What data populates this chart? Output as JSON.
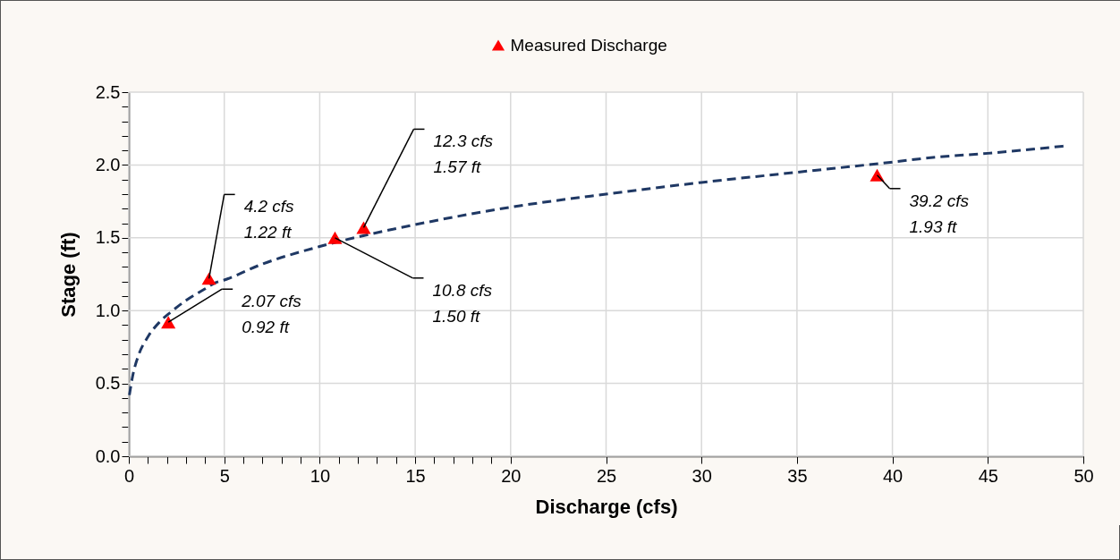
{
  "chart_data": {
    "type": "scatter",
    "xlabel": "Discharge (cfs)",
    "ylabel": "Stage (ft)",
    "xlim": [
      0,
      50
    ],
    "xticks": [
      0,
      {
        "value": 1,
        "label": null
      },
      {
        "value": 2,
        "label": null
      },
      {
        "value": 3,
        "label": null
      },
      {
        "value": 4,
        "label": null
      },
      5,
      {
        "value": 6,
        "label": null
      },
      {
        "value": 7,
        "label": null
      },
      {
        "value": 8,
        "label": null
      },
      {
        "value": 9,
        "label": null
      },
      10,
      {
        "value": 11,
        "label": null
      },
      {
        "value": 12,
        "label": null
      },
      {
        "value": 13,
        "label": null
      },
      {
        "value": 14,
        "label": null
      },
      15,
      {
        "value": 16,
        "label": null
      },
      {
        "value": 17,
        "label": null
      },
      {
        "value": 18,
        "label": null
      },
      {
        "value": 19,
        "label": null
      },
      20,
      25,
      30,
      35,
      40,
      45,
      50
    ],
    "ylim": [
      0,
      2.5
    ],
    "yticks": [
      {
        "value": 0,
        "label": "0.0"
      },
      {
        "value": 0.1,
        "label": null
      },
      {
        "value": 0.2,
        "label": null
      },
      {
        "value": 0.3,
        "label": null
      },
      {
        "value": 0.4,
        "label": null
      },
      {
        "value": 0.5,
        "label": "0.5"
      },
      {
        "value": 0.6,
        "label": null
      },
      {
        "value": 0.7,
        "label": null
      },
      {
        "value": 0.8,
        "label": null
      },
      {
        "value": 0.9,
        "label": null
      },
      {
        "value": 1,
        "label": "1.0"
      },
      {
        "value": 1.1,
        "label": null
      },
      {
        "value": 1.2,
        "label": null
      },
      {
        "value": 1.3,
        "label": null
      },
      {
        "value": 1.4,
        "label": null
      },
      {
        "value": 1.5,
        "label": "1.5"
      },
      {
        "value": 1.6,
        "label": null
      },
      {
        "value": 1.7,
        "label": null
      },
      {
        "value": 1.8,
        "label": null
      },
      {
        "value": 1.9,
        "label": null
      },
      {
        "value": 2,
        "label": "2.0"
      },
      {
        "value": 2.1,
        "label": null
      },
      {
        "value": 2.2,
        "label": null
      },
      {
        "value": 2.3,
        "label": null
      },
      {
        "value": 2.4,
        "label": null
      },
      {
        "value": 2.5,
        "label": "2.5"
      }
    ],
    "grid": true,
    "legend": "top",
    "series": [
      {
        "name": "Measured Discharge",
        "color": "#ff0000",
        "marker": "triangle",
        "x": [
          2.07,
          4.2,
          10.8,
          12.3,
          39.2
        ],
        "values": [
          0.92,
          1.22,
          1.5,
          1.57,
          1.93
        ]
      },
      {
        "type": "line",
        "color": "#1f3864",
        "line_style": "dashed",
        "marker": "none",
        "x": [
          0.03,
          0.2,
          0.5,
          1,
          1.6,
          2.2,
          3,
          4,
          4.5,
          5,
          7,
          10,
          15,
          20,
          25,
          30,
          35,
          40,
          42,
          45,
          49
        ],
        "values": [
          0.42,
          0.55,
          0.69,
          0.82,
          0.92,
          0.99,
          1.07,
          1.15,
          1.19,
          1.21,
          1.32,
          1.44,
          1.59,
          1.71,
          1.8,
          1.88,
          1.95,
          2.02,
          2.05,
          2.08,
          2.13
        ]
      }
    ],
    "annotations": [
      {
        "text": "2.07 cfs\n0.92 ft",
        "x": 2.07,
        "y": 0.92
      },
      {
        "text": "4.2 cfs\n1.22 ft",
        "x": 4.2,
        "y": 1.22
      },
      {
        "text": "10.8 cfs\n1.50 ft",
        "x": 10.8,
        "y": 1.5
      },
      {
        "text": "12.3 cfs\n1.57 ft",
        "x": 12.3,
        "y": 1.57
      },
      {
        "text": "39.2 cfs\n1.93 ft",
        "x": 39.2,
        "y": 1.93
      }
    ]
  }
}
